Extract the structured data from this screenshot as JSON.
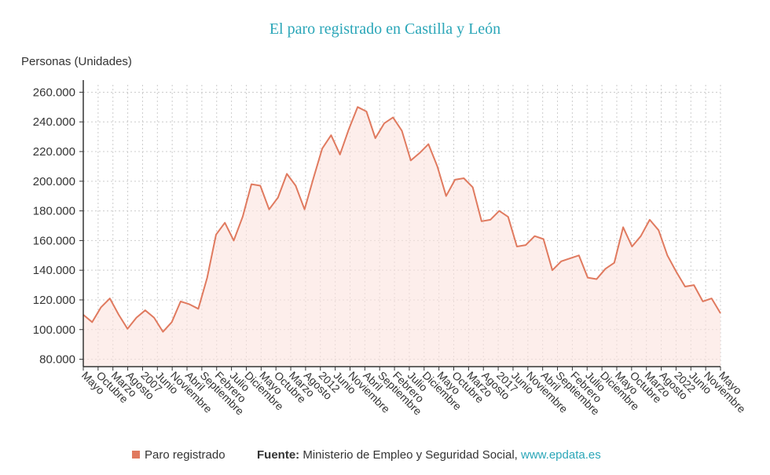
{
  "colors": {
    "title": "#2aa6b8",
    "line": "#e07a5f",
    "fill": "#fbe3dd",
    "axis": "#333333",
    "grid": "#cccccc",
    "link": "#2aa6b8"
  },
  "legend": {
    "label": "Paro registrado"
  },
  "source": {
    "label": "Fuente:",
    "text": "Ministerio de Empleo y Seguridad Social,",
    "link": "www.epdata.es"
  },
  "chart_data": {
    "type": "area",
    "title": "El paro registrado en Castilla y León",
    "xlabel": "",
    "ylabel": "Personas (Unidades)",
    "ylim": [
      75000,
      265000
    ],
    "yticks": [
      80000,
      100000,
      120000,
      140000,
      160000,
      180000,
      200000,
      220000,
      240000,
      260000
    ],
    "ytick_labels": [
      "80.000",
      "100.000",
      "120.000",
      "140.000",
      "160.000",
      "180.000",
      "200.000",
      "220.000",
      "240.000",
      "260.000"
    ],
    "xlim": [
      "2005-05",
      "2023-05"
    ],
    "xtick_labels": [
      "Mayo",
      "Octubre",
      "Marzo",
      "Agosto",
      "2007",
      "Junio",
      "Noviembre",
      "Abril",
      "Septiembre",
      "Febrero",
      "Julio",
      "Diciembre",
      "Mayo",
      "Octubre",
      "Marzo",
      "Agosto",
      "2012",
      "Junio",
      "Noviembre",
      "Abril",
      "Septiembre",
      "Febrero",
      "Julio",
      "Diciembre",
      "Mayo",
      "Octubre",
      "Marzo",
      "Agosto",
      "2017",
      "Junio",
      "Noviembre",
      "Abril",
      "Septiembre",
      "Febrero",
      "Julio",
      "Diciembre",
      "Mayo",
      "Octubre",
      "Marzo",
      "Agosto",
      "2022",
      "Junio",
      "Noviembre",
      "Mayo"
    ],
    "grid": true,
    "legend_position": "bottom-left",
    "series": [
      {
        "name": "Paro registrado",
        "x": [
          "2005-05",
          "2005-08",
          "2005-11",
          "2006-02",
          "2006-05",
          "2006-08",
          "2006-11",
          "2007-02",
          "2007-05",
          "2007-08",
          "2007-11",
          "2008-02",
          "2008-05",
          "2008-08",
          "2008-11",
          "2009-02",
          "2009-05",
          "2009-08",
          "2009-11",
          "2010-02",
          "2010-05",
          "2010-08",
          "2010-11",
          "2011-02",
          "2011-05",
          "2011-08",
          "2011-11",
          "2012-02",
          "2012-05",
          "2012-08",
          "2012-11",
          "2013-02",
          "2013-05",
          "2013-08",
          "2013-11",
          "2014-02",
          "2014-05",
          "2014-08",
          "2014-11",
          "2015-02",
          "2015-05",
          "2015-08",
          "2015-11",
          "2016-02",
          "2016-05",
          "2016-08",
          "2016-11",
          "2017-02",
          "2017-05",
          "2017-08",
          "2017-11",
          "2018-02",
          "2018-05",
          "2018-08",
          "2018-11",
          "2019-02",
          "2019-05",
          "2019-08",
          "2019-11",
          "2020-02",
          "2020-05",
          "2020-08",
          "2020-11",
          "2021-02",
          "2021-05",
          "2021-08",
          "2021-11",
          "2022-02",
          "2022-05",
          "2022-08",
          "2022-11",
          "2023-02",
          "2023-05"
        ],
        "values": [
          110000,
          105000,
          115000,
          121000,
          110000,
          100500,
          108000,
          113000,
          108000,
          98500,
          105000,
          119000,
          117000,
          114000,
          135000,
          164000,
          172000,
          160000,
          176000,
          198000,
          197000,
          181000,
          189000,
          205000,
          197000,
          181000,
          202000,
          222000,
          231000,
          218000,
          235000,
          250000,
          247000,
          229000,
          239000,
          243000,
          234000,
          214000,
          219000,
          225000,
          210000,
          190000,
          201000,
          202000,
          196000,
          173000,
          174000,
          180000,
          176000,
          156000,
          157000,
          163000,
          161000,
          140000,
          146000,
          148000,
          150000,
          135000,
          134000,
          141000,
          145000,
          169000,
          156000,
          163000,
          174000,
          167000,
          150000,
          139000,
          129000,
          130000,
          119000,
          121000,
          111000
        ]
      }
    ]
  }
}
